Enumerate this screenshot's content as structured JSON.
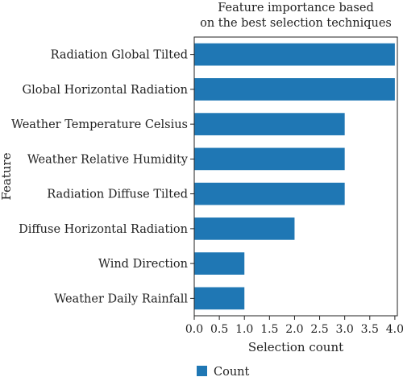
{
  "chart_data": {
    "type": "bar",
    "orientation": "horizontal",
    "title_lines": [
      "Feature importance based",
      "on the best selection techniques"
    ],
    "xlabel": "Selection count",
    "ylabel": "Feature",
    "categories": [
      "Radiation Global Tilted",
      "Global Horizontal Radiation",
      "Weather Temperature Celsius",
      "Weather Relative Humidity",
      "Radiation Diffuse Tilted",
      "Diffuse Horizontal Radiation",
      "Wind Direction",
      "Weather Daily Rainfall"
    ],
    "series": [
      {
        "name": "Count",
        "values": [
          4,
          4,
          3,
          3,
          3,
          2,
          1,
          1
        ]
      }
    ],
    "xlim": [
      0,
      4.05
    ],
    "xticks": [
      "0.0",
      "0.5",
      "1.0",
      "1.5",
      "2.0",
      "2.5",
      "3.0",
      "3.5",
      "4.0"
    ],
    "grid": false,
    "legend_position": "bottom-left",
    "bar_color": "#1f77b4"
  }
}
